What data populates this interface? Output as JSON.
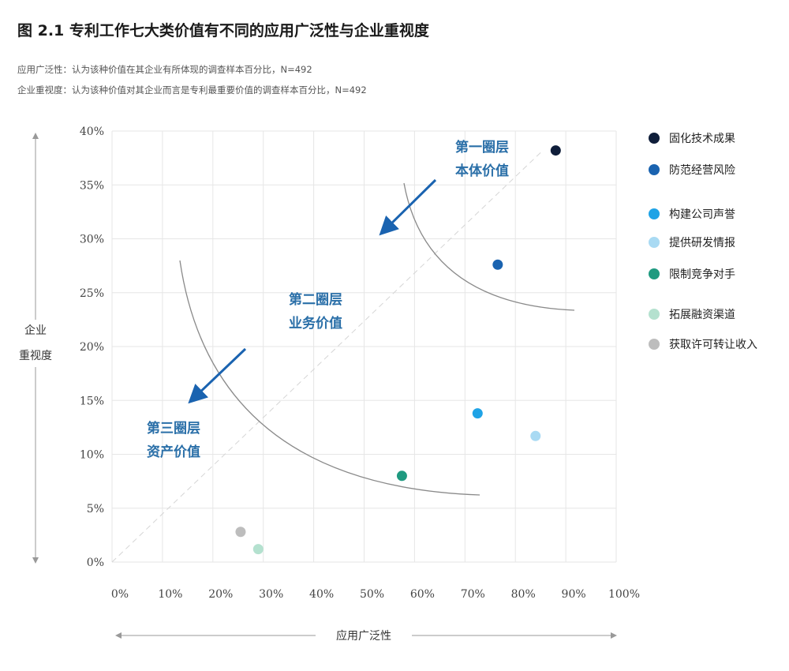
{
  "page": {
    "title": "图 2.1 专利工作七大类价值有不同的应用广泛性与企业重视度",
    "subtitle_1": "应用广泛性：认为该种价值在其企业有所体现的调查样本百分比，N=492",
    "subtitle_2": "企业重视度：认为该种价值对其企业而言是专利最重要价值的调查样本百分比，N=492"
  },
  "chart_data": {
    "type": "scatter",
    "xlabel": "应用广泛性",
    "ylabel_line1": "企业",
    "ylabel_line2": "重视度",
    "xlim": [
      0,
      100
    ],
    "ylim": [
      0,
      40
    ],
    "x_ticks": [
      "0%",
      "10%",
      "20%",
      "30%",
      "40%",
      "50%",
      "60%",
      "70%",
      "80%",
      "90%",
      "100%"
    ],
    "y_ticks": [
      "0%",
      "5%",
      "10%",
      "15%",
      "20%",
      "25%",
      "30%",
      "35%",
      "40%"
    ],
    "grid": true,
    "legend_position": "right",
    "series": [
      {
        "name": "固化技术成果",
        "x": 88,
        "y": 38.2,
        "color": "#0f1e3a"
      },
      {
        "name": "防范经营风险",
        "x": 76.5,
        "y": 27.6,
        "color": "#1a63b0"
      },
      {
        "name": "构建公司声誉",
        "x": 72.5,
        "y": 13.8,
        "color": "#1fa3e6"
      },
      {
        "name": "提供研发情报",
        "x": 84,
        "y": 11.7,
        "color": "#a9daf3"
      },
      {
        "name": "限制竞争对手",
        "x": 57.5,
        "y": 8.0,
        "color": "#1f9a80"
      },
      {
        "name": "拓展融资渠道",
        "x": 29,
        "y": 1.2,
        "color": "#b4e1cf"
      },
      {
        "name": "获取许可转让收入",
        "x": 25.5,
        "y": 2.8,
        "color": "#bdbdbd"
      }
    ],
    "annotations": [
      {
        "line1": "第一圈层",
        "line2": "本体价值"
      },
      {
        "line1": "第二圈层",
        "line2": "业务价值"
      },
      {
        "line1": "第三圈层",
        "line2": "资产价值"
      }
    ]
  }
}
